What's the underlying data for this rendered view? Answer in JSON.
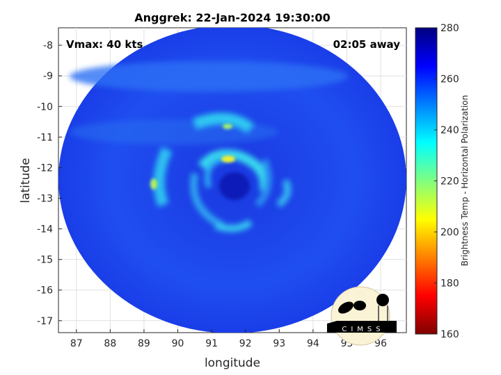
{
  "chart_data": {
    "type": "heatmap",
    "title": "Anggrek: 22-Jan-2024 19:30:00",
    "xlabel": "longitude",
    "ylabel": "latitude",
    "xlim": [
      86.47,
      96.76
    ],
    "ylim": [
      -17.39,
      -7.43
    ],
    "xticks": [
      87,
      88,
      89,
      90,
      91,
      92,
      93,
      94,
      95,
      96
    ],
    "yticks": [
      -8,
      -9,
      -10,
      -11,
      -12,
      -13,
      -14,
      -15,
      -16,
      -17
    ],
    "grid": true,
    "annotations": {
      "vmax": "Vmax: 40 kts",
      "time_offset": "02:05 away"
    },
    "colorbar": {
      "label": "Brightness Temp - Horizontal Polarization",
      "range": [
        160,
        280
      ],
      "ticks": [
        160,
        180,
        200,
        220,
        240,
        260,
        280
      ],
      "colormap": "jet"
    },
    "storm_center": {
      "lon": 91.6,
      "lat": -12.6
    }
  },
  "logo": {
    "text": "CIMSS"
  },
  "colors": {
    "background_field": "#1f45ea",
    "eye": "#0a1fb8",
    "bands": "#37d8f0",
    "hot_spot": "#f0f030"
  }
}
